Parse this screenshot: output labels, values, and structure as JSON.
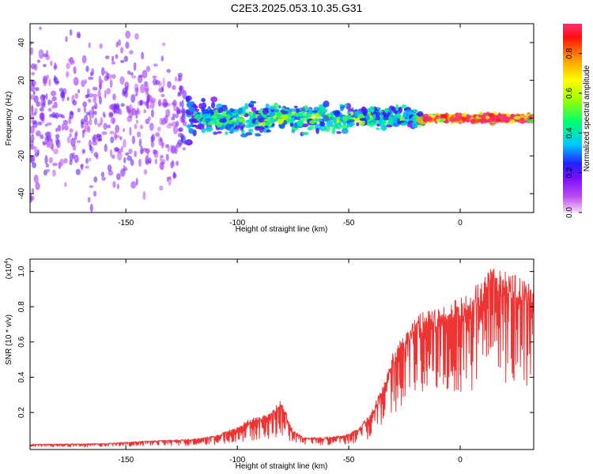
{
  "title": "C2E3.2025.053.10.35.G31",
  "colors": {
    "snr_line": "#ee3333",
    "axis": "#000000",
    "background": "#ffffff"
  },
  "chart_data": [
    {
      "type": "heatmap",
      "xlabel": "Height of straight line (km)",
      "ylabel": "Frequency (Hz)",
      "xlim": [
        -193,
        33
      ],
      "ylim": [
        -50,
        50
      ],
      "x_ticks": [
        -150,
        -100,
        -50,
        0
      ],
      "y_ticks": [
        -40,
        -20,
        0,
        20,
        40
      ],
      "grid": false,
      "colorscale": "rainbow (magenta-blue-cyan-green-yellow-red)",
      "colorbar": {
        "label": "Normalized spectral amplitude",
        "range": [
          0,
          0.95
        ],
        "ticks": [
          0.0,
          0.2,
          0.4,
          0.6,
          0.8
        ]
      },
      "features": [
        {
          "x": -193,
          "spread_hz": 48,
          "amplitude": 0.15
        },
        {
          "x": -150,
          "spread_hz": 45,
          "amplitude": 0.15
        },
        {
          "x": -130,
          "spread_hz": 40,
          "amplitude": 0.12
        },
        {
          "x": -120,
          "spread_hz": 10,
          "amplitude": 0.25
        },
        {
          "x": -100,
          "spread_hz": 9,
          "amplitude": 0.3
        },
        {
          "x": -80,
          "spread_hz": 8,
          "amplitude": 0.35
        },
        {
          "x": -60,
          "spread_hz": 7,
          "amplitude": 0.35
        },
        {
          "x": -40,
          "spread_hz": 6,
          "amplitude": 0.35
        },
        {
          "x": -20,
          "spread_hz": 5,
          "amplitude": 0.3
        },
        {
          "x": -15,
          "spread_hz": 2,
          "amplitude": 0.8
        },
        {
          "x": 0,
          "spread_hz": 2,
          "amplitude": 0.85
        },
        {
          "x": 33,
          "spread_hz": 2,
          "amplitude": 0.9
        }
      ]
    },
    {
      "type": "line",
      "xlabel": "Height of straight line (km)",
      "ylabel": "SNR (10 * v/v)",
      "y_multiplier_label": "(x10",
      "y_multiplier_exp": "4",
      "xlim": [
        -193,
        33
      ],
      "ylim": [
        -0.01,
        1.07
      ],
      "x_ticks": [
        -150,
        -100,
        -50,
        0
      ],
      "y_ticks": [
        0.2,
        0.4,
        0.6,
        0.8,
        1.0
      ],
      "grid": false,
      "series": [
        {
          "envelope": {
            "x": [
              -193,
              -160,
              -140,
              -120,
              -110,
              -100,
              -95,
              -90,
              -85,
              -80,
              -78,
              -75,
              -70,
              -60,
              -50,
              -45,
              -40,
              -35,
              -30,
              -25,
              -20,
              -15,
              -10,
              -5,
              0,
              5,
              10,
              15,
              20,
              25,
              33
            ],
            "y": [
              0.02,
              0.025,
              0.04,
              0.05,
              0.07,
              0.12,
              0.16,
              0.18,
              0.2,
              0.28,
              0.2,
              0.1,
              0.06,
              0.06,
              0.08,
              0.12,
              0.2,
              0.35,
              0.55,
              0.65,
              0.75,
              0.78,
              0.8,
              0.82,
              0.85,
              0.9,
              0.95,
              1.05,
              1.0,
              0.98,
              0.95
            ]
          }
        }
      ]
    }
  ]
}
